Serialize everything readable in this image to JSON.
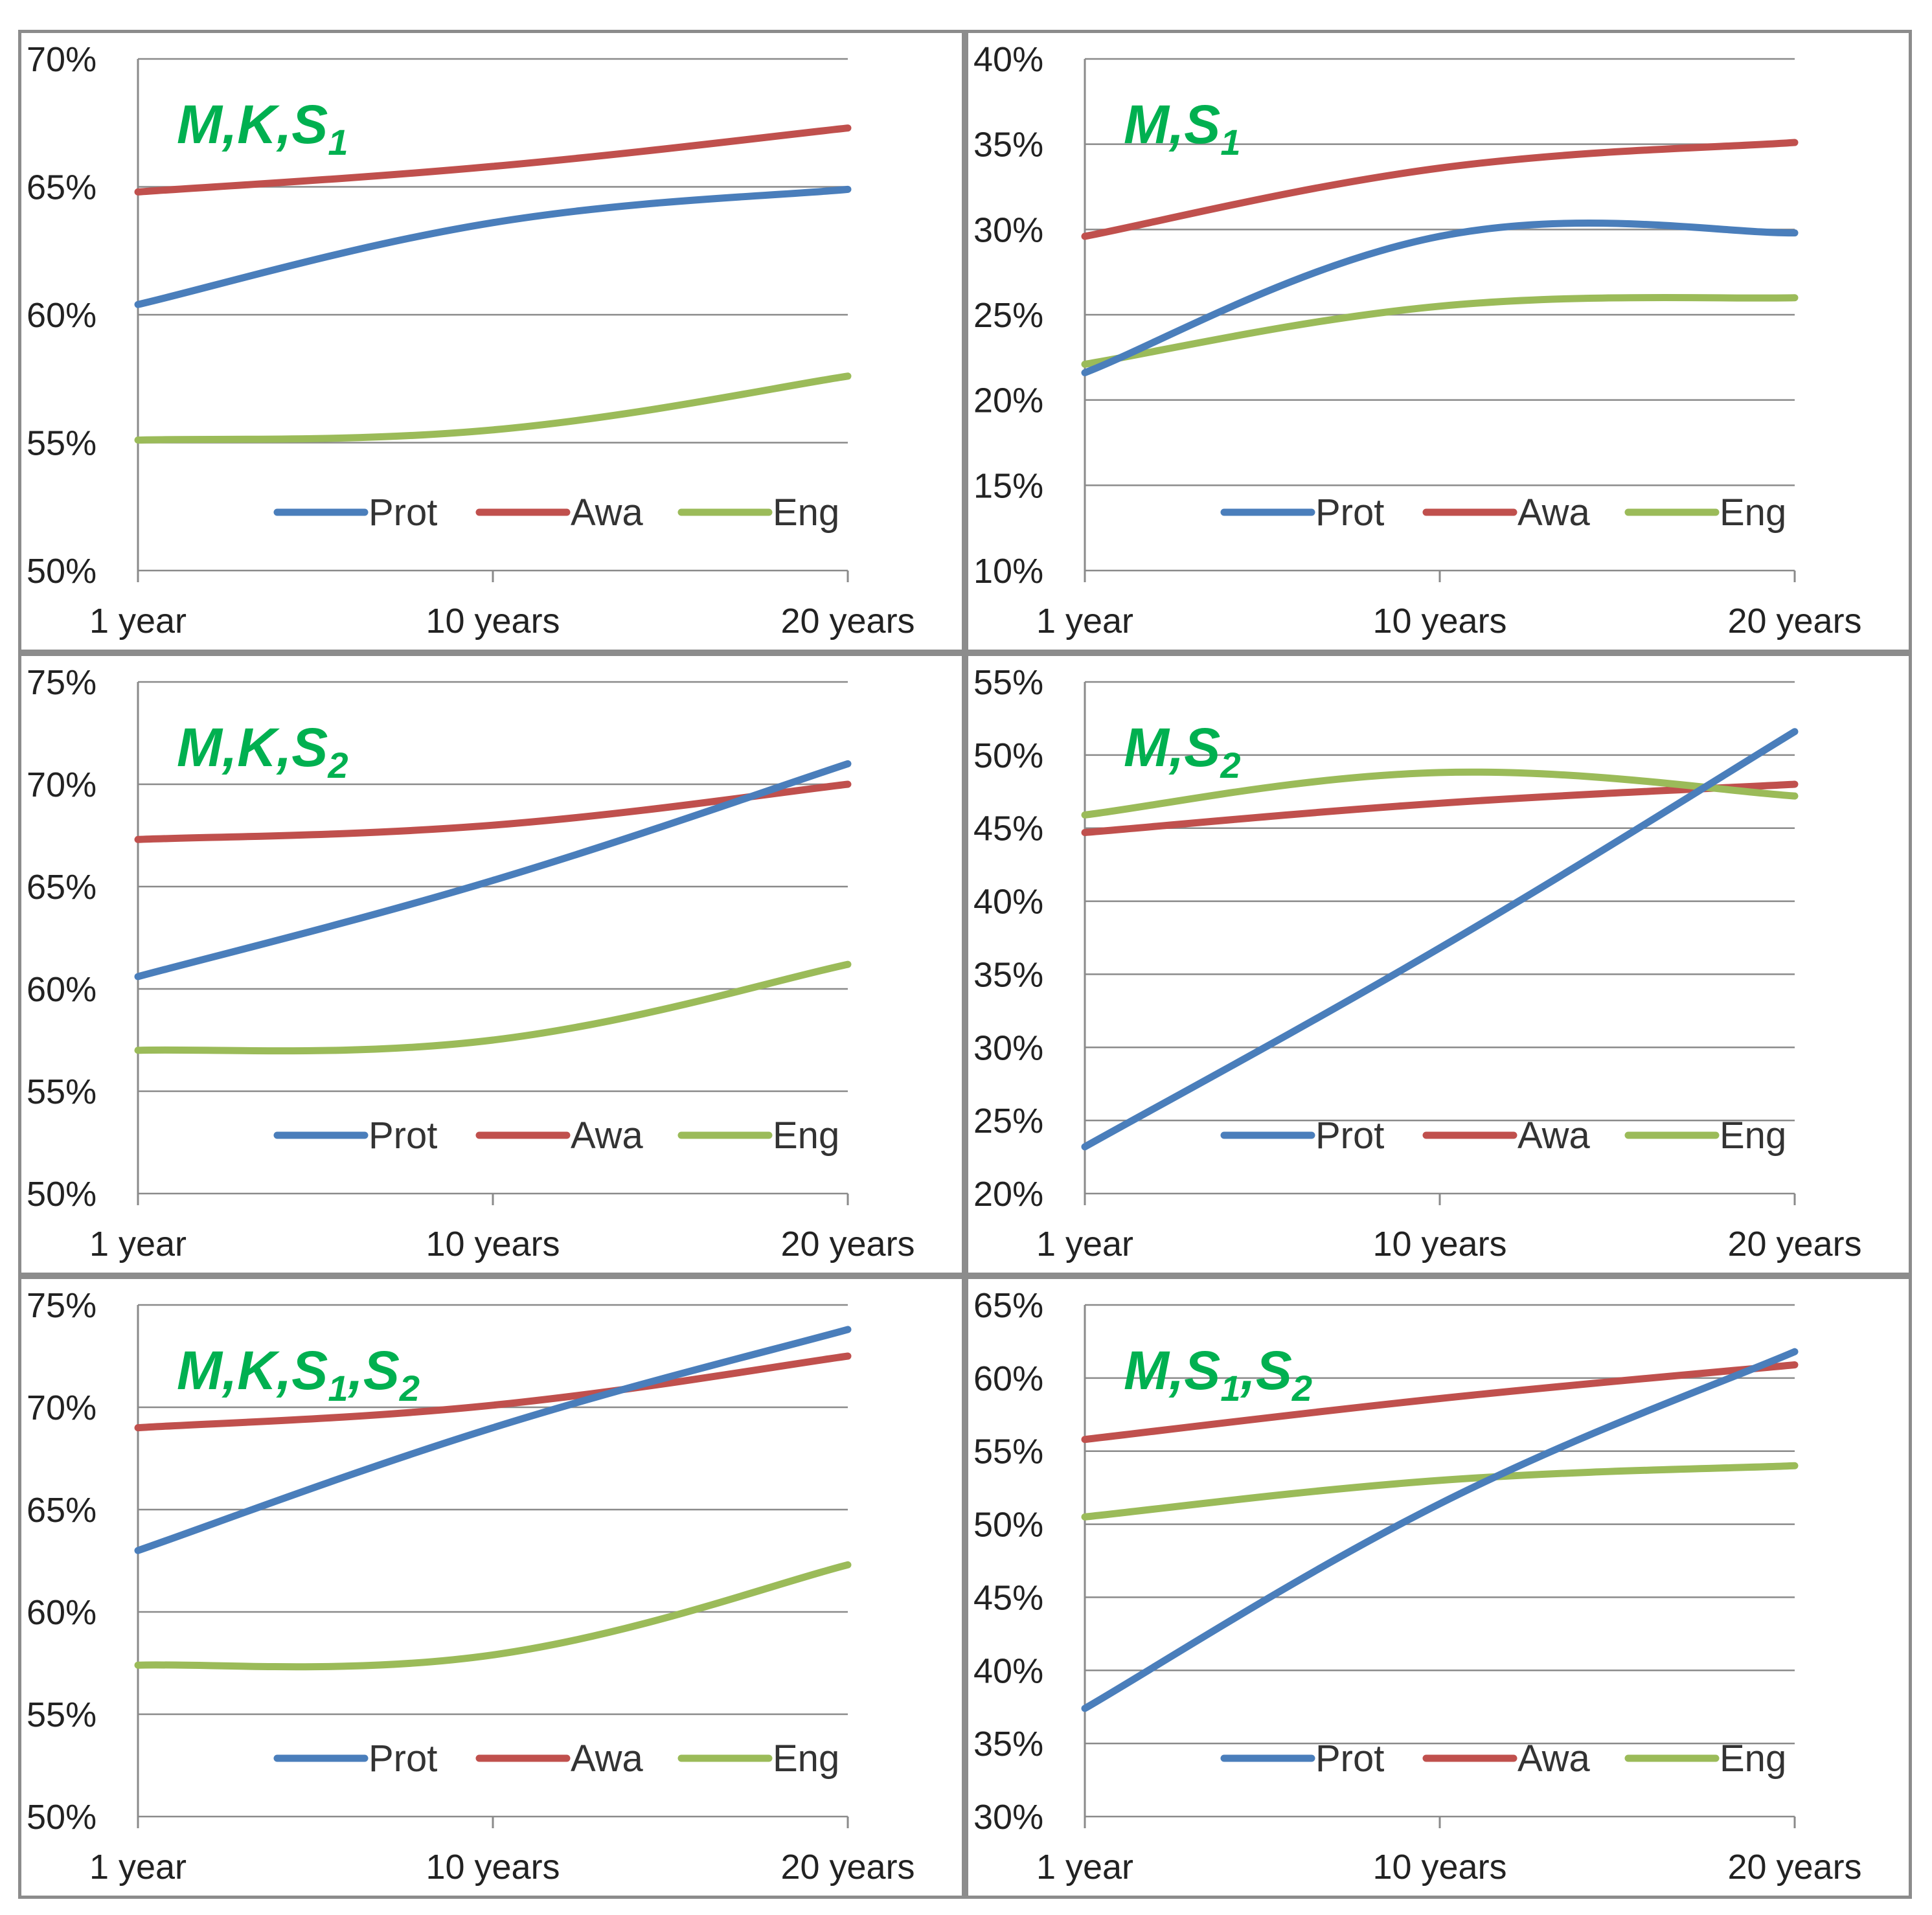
{
  "figure": {
    "series_colors": {
      "Prot": "#4a7ebb",
      "Awa": "#c0504d",
      "Eng": "#9bbb59"
    },
    "title_color": "#00b050"
  },
  "chart_data": [
    {
      "type": "line",
      "title": "M,K,S1",
      "title_parts": [
        {
          "t": "M,K,S",
          "sub": false
        },
        {
          "t": "1",
          "sub": true
        }
      ],
      "x": [
        "1 year",
        "10 years",
        "20 years"
      ],
      "ylim": [
        50,
        70
      ],
      "yticks": [
        50,
        55,
        60,
        65,
        70
      ],
      "ytick_labels": [
        "50%",
        "55%",
        "60%",
        "65%",
        "70%"
      ],
      "legend": [
        "Prot",
        "Awa",
        "Eng"
      ],
      "series": [
        {
          "name": "Prot",
          "values": [
            60.4,
            63.6,
            64.9
          ]
        },
        {
          "name": "Awa",
          "values": [
            64.8,
            65.8,
            67.3
          ]
        },
        {
          "name": "Eng",
          "values": [
            55.1,
            55.5,
            57.6
          ]
        }
      ]
    },
    {
      "type": "line",
      "title": "M,S1",
      "title_parts": [
        {
          "t": "M,S",
          "sub": false
        },
        {
          "t": "1",
          "sub": true
        }
      ],
      "x": [
        "1 year",
        "10 years",
        "20 years"
      ],
      "ylim": [
        10,
        40
      ],
      "yticks": [
        10,
        15,
        20,
        25,
        30,
        35,
        40
      ],
      "ytick_labels": [
        "10%",
        "15%",
        "20%",
        "25%",
        "30%",
        "35%",
        "40%"
      ],
      "legend": [
        "Prot",
        "Awa",
        "Eng"
      ],
      "series": [
        {
          "name": "Prot",
          "values": [
            21.6,
            29.6,
            29.8
          ]
        },
        {
          "name": "Awa",
          "values": [
            29.6,
            33.6,
            35.1
          ]
        },
        {
          "name": "Eng",
          "values": [
            22.1,
            25.5,
            26.0
          ]
        }
      ]
    },
    {
      "type": "line",
      "title": "M,K,S2",
      "title_parts": [
        {
          "t": "M,K,S",
          "sub": false
        },
        {
          "t": "2",
          "sub": true
        }
      ],
      "x": [
        "1 year",
        "10 years",
        "20 years"
      ],
      "ylim": [
        50,
        75
      ],
      "yticks": [
        50,
        55,
        60,
        65,
        70,
        75
      ],
      "ytick_labels": [
        "50%",
        "55%",
        "60%",
        "65%",
        "70%",
        "75%"
      ],
      "legend": [
        "Prot",
        "Awa",
        "Eng"
      ],
      "series": [
        {
          "name": "Prot",
          "values": [
            60.6,
            65.3,
            71.0
          ]
        },
        {
          "name": "Awa",
          "values": [
            67.3,
            68.0,
            70.0
          ]
        },
        {
          "name": "Eng",
          "values": [
            57.0,
            57.5,
            61.2
          ]
        }
      ]
    },
    {
      "type": "line",
      "title": "M,S2",
      "title_parts": [
        {
          "t": "M,S",
          "sub": false
        },
        {
          "t": "2",
          "sub": true
        }
      ],
      "x": [
        "1 year",
        "10 years",
        "20 years"
      ],
      "ylim": [
        20,
        55
      ],
      "yticks": [
        20,
        25,
        30,
        35,
        40,
        45,
        50,
        55
      ],
      "ytick_labels": [
        "20%",
        "25%",
        "30%",
        "35%",
        "40%",
        "45%",
        "50%",
        "55%"
      ],
      "legend": [
        "Prot",
        "Awa",
        "Eng"
      ],
      "series": [
        {
          "name": "Prot",
          "values": [
            23.2,
            36.8,
            51.6
          ]
        },
        {
          "name": "Awa",
          "values": [
            44.7,
            46.7,
            48.0
          ]
        },
        {
          "name": "Eng",
          "values": [
            45.9,
            48.8,
            47.2
          ]
        }
      ]
    },
    {
      "type": "line",
      "title": "M,K,S1,S2",
      "title_parts": [
        {
          "t": "M,K,S",
          "sub": false
        },
        {
          "t": "1",
          "sub": true
        },
        {
          "t": ",S",
          "sub": false
        },
        {
          "t": "2",
          "sub": true
        }
      ],
      "x": [
        "1 year",
        "10 years",
        "20 years"
      ],
      "ylim": [
        50,
        75
      ],
      "yticks": [
        50,
        55,
        60,
        65,
        70,
        75
      ],
      "ytick_labels": [
        "50%",
        "55%",
        "60%",
        "65%",
        "70%",
        "75%"
      ],
      "legend": [
        "Prot",
        "Awa",
        "Eng"
      ],
      "series": [
        {
          "name": "Prot",
          "values": [
            63.0,
            69.0,
            73.8
          ]
        },
        {
          "name": "Awa",
          "values": [
            69.0,
            70.1,
            72.5
          ]
        },
        {
          "name": "Eng",
          "values": [
            57.4,
            57.9,
            62.3
          ]
        }
      ]
    },
    {
      "type": "line",
      "title": "M,S1,S2",
      "title_parts": [
        {
          "t": "M,S",
          "sub": false
        },
        {
          "t": "1",
          "sub": true
        },
        {
          "t": ",S",
          "sub": false
        },
        {
          "t": "2",
          "sub": true
        }
      ],
      "x": [
        "1 year",
        "10 years",
        "20 years"
      ],
      "ylim": [
        30,
        65
      ],
      "yticks": [
        30,
        35,
        40,
        45,
        50,
        55,
        60,
        65
      ],
      "ytick_labels": [
        "30%",
        "35%",
        "40%",
        "45%",
        "50%",
        "55%",
        "60%",
        "65%"
      ],
      "legend": [
        "Prot",
        "Awa",
        "Eng"
      ],
      "series": [
        {
          "name": "Prot",
          "values": [
            37.4,
            51.4,
            61.8
          ]
        },
        {
          "name": "Awa",
          "values": [
            55.8,
            58.6,
            60.9
          ]
        },
        {
          "name": "Eng",
          "values": [
            50.5,
            53.0,
            54.0
          ]
        }
      ]
    }
  ]
}
